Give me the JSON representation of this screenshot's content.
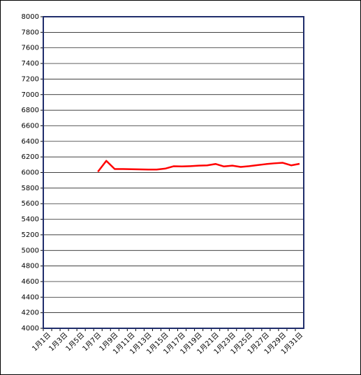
{
  "chart_data": {
    "type": "line",
    "categories": [
      "1月1日",
      null,
      "1月3日",
      null,
      "1月5日",
      null,
      "1月7日",
      null,
      "1月9日",
      null,
      "1月11日",
      null,
      "1月13日",
      null,
      "1月15日",
      null,
      "1月17日",
      null,
      "1月19日",
      null,
      "1月21日",
      null,
      "1月23日",
      null,
      "1月25日",
      null,
      "1月27日",
      null,
      "1月29日",
      null,
      "1月31日"
    ],
    "series": [
      {
        "color": "#ff0000",
        "values": [
          null,
          null,
          null,
          null,
          null,
          null,
          6010,
          6150,
          6045,
          6045,
          6042,
          6040,
          6038,
          6038,
          6050,
          6080,
          6078,
          6082,
          6088,
          6092,
          6110,
          6078,
          6088,
          6072,
          6082,
          6095,
          6108,
          6118,
          6125,
          6092,
          6112
        ]
      }
    ],
    "ylim": [
      4000,
      8000
    ],
    "yticks": [
      4000,
      4200,
      4400,
      4600,
      4800,
      5000,
      5200,
      5400,
      5600,
      5800,
      6000,
      6200,
      6400,
      6600,
      6800,
      7000,
      7200,
      7400,
      7600,
      7800,
      8000
    ],
    "grid": true
  }
}
